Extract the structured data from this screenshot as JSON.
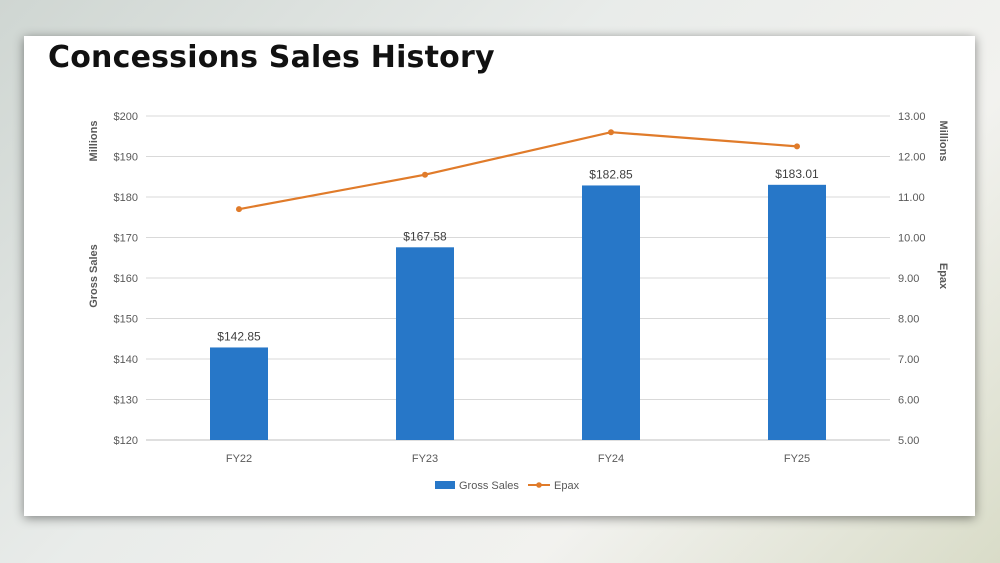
{
  "slide": {
    "title": "Concessions Sales History"
  },
  "chart_data": {
    "type": "bar",
    "title": "Concessions Sales History",
    "categories": [
      "FY22",
      "FY23",
      "FY24",
      "FY25"
    ],
    "series": [
      {
        "name": "Gross Sales",
        "type": "bar",
        "axis": "left",
        "values": [
          142.85,
          167.58,
          182.85,
          183.01
        ],
        "labels": [
          "$142.85",
          "$167.58",
          "$182.85",
          "$183.01"
        ],
        "color": "#2777C8"
      },
      {
        "name": "Epax",
        "type": "line",
        "axis": "right",
        "values": [
          10.7,
          11.55,
          12.6,
          12.25
        ],
        "color": "#E07B2A"
      }
    ],
    "y_left": {
      "label": "Gross Sales",
      "unit_label": "Millions",
      "range": [
        120,
        200
      ],
      "ticks": [
        "$120",
        "$130",
        "$140",
        "$150",
        "$160",
        "$170",
        "$180",
        "$190",
        "$200"
      ]
    },
    "y_right": {
      "label": "Epax",
      "unit_label": "Millions",
      "range": [
        5,
        13
      ],
      "ticks": [
        "5.00",
        "6.00",
        "7.00",
        "8.00",
        "9.00",
        "10.00",
        "11.00",
        "12.00",
        "13.00"
      ]
    },
    "grid": true,
    "legend_position": "bottom"
  }
}
